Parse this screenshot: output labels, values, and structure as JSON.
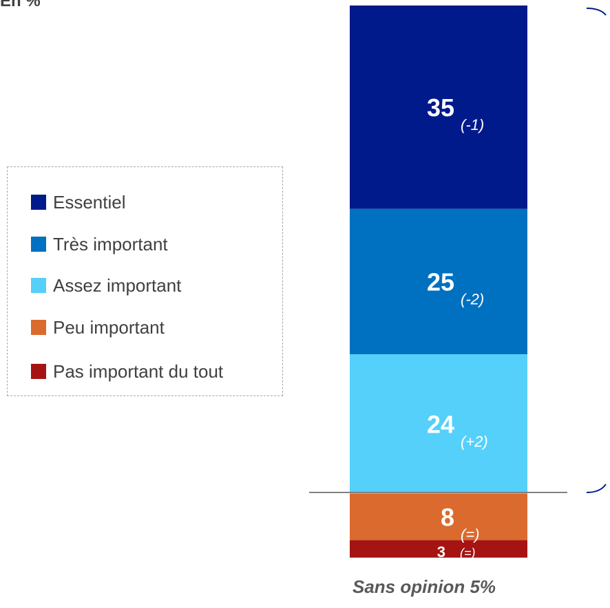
{
  "unit_label": "En %",
  "chart_data": {
    "type": "bar",
    "stacked": true,
    "orientation": "vertical",
    "categories": [
      ""
    ],
    "series": [
      {
        "name": "Essentiel",
        "values": [
          35
        ],
        "change": "(-1)",
        "color": "#001a8c"
      },
      {
        "name": "Très important",
        "values": [
          25
        ],
        "change": "(-2)",
        "color": "#0070c0"
      },
      {
        "name": "Assez important",
        "values": [
          24
        ],
        "change": "(+2)",
        "color": "#55d0fa"
      },
      {
        "name": "Peu important",
        "values": [
          8
        ],
        "change": "(=)",
        "color": "#db6a2e"
      },
      {
        "name": "Pas important du tout",
        "values": [
          3
        ],
        "change": "(=)",
        "color": "#a51313"
      }
    ],
    "legend_position": "left",
    "grid": false,
    "footnote": "Sans opinion 5%"
  }
}
